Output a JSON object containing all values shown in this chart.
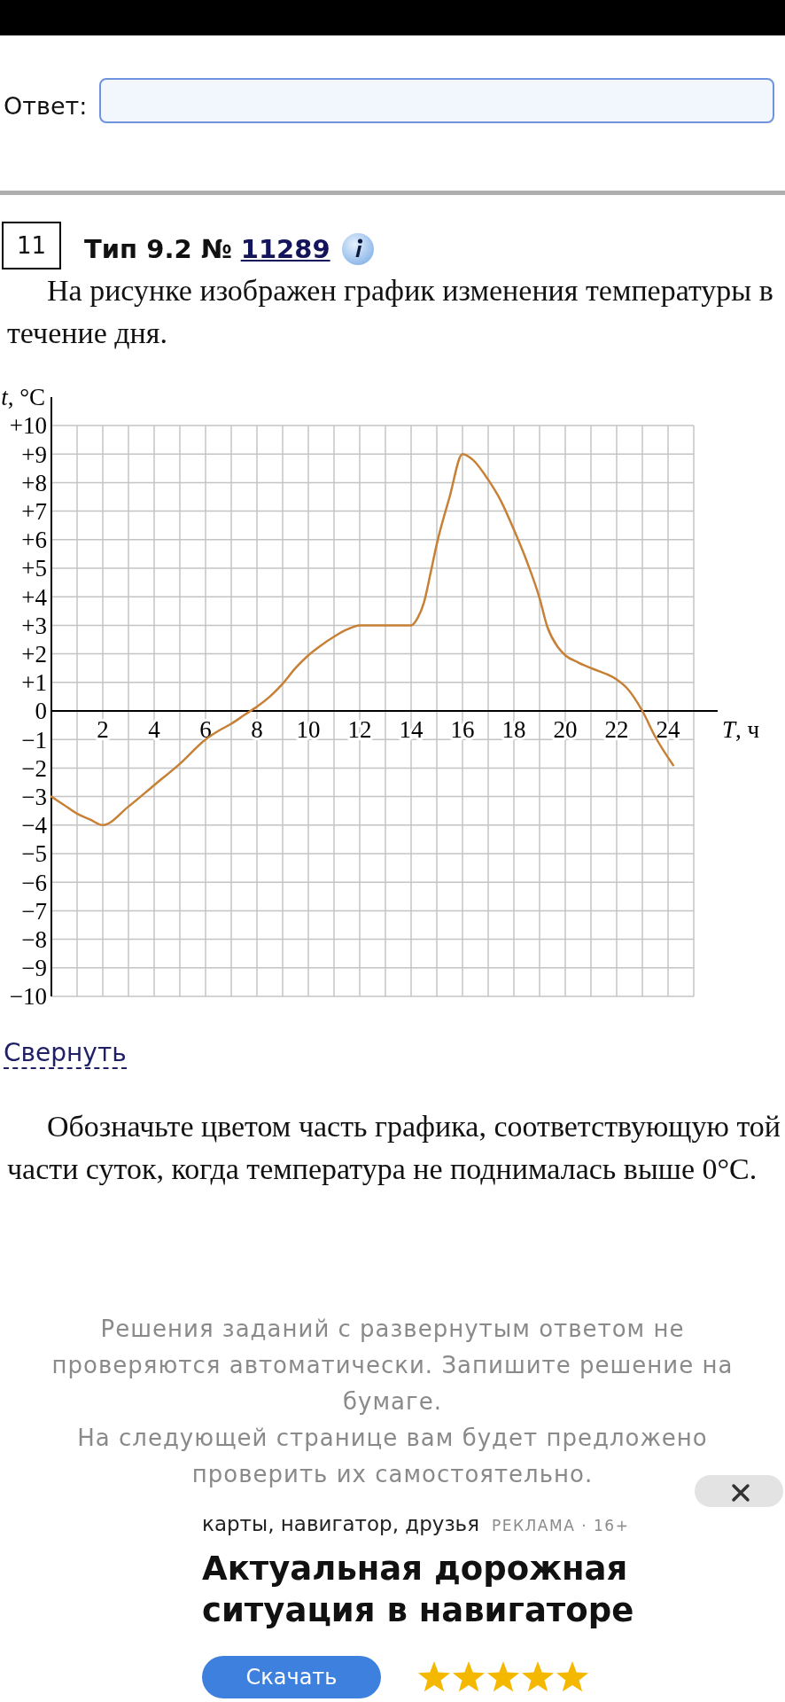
{
  "chart_data": {
    "type": "line",
    "title": "На рисунке изображен график изменения температуры в течение дня.",
    "xlabel": "T, ч",
    "ylabel": "t, °C",
    "xlim": [
      0,
      25
    ],
    "ylim": [
      -10,
      10
    ],
    "xticks": [
      {
        "value": 1,
        "label": null
      },
      2,
      {
        "value": 3,
        "label": null
      },
      4,
      {
        "value": 5,
        "label": null
      },
      6,
      {
        "value": 7,
        "label": null
      },
      8,
      {
        "value": 9,
        "label": null
      },
      10,
      {
        "value": 11,
        "label": null
      },
      12,
      {
        "value": 13,
        "label": null
      },
      14,
      {
        "value": 15,
        "label": null
      },
      16,
      {
        "value": 17,
        "label": null
      },
      18,
      {
        "value": 19,
        "label": null
      },
      20,
      {
        "value": 21,
        "label": null
      },
      22,
      {
        "value": 23,
        "label": null
      },
      24,
      {
        "value": 25,
        "label": null
      }
    ],
    "yticks": [
      {
        "value": -10,
        "label": "−10"
      },
      {
        "value": -9,
        "label": "−9"
      },
      {
        "value": -8,
        "label": "−8"
      },
      {
        "value": -7,
        "label": "−7"
      },
      {
        "value": -6,
        "label": "−6"
      },
      {
        "value": -5,
        "label": "−5"
      },
      {
        "value": -4,
        "label": "−4"
      },
      {
        "value": -3,
        "label": "−3"
      },
      {
        "value": -2,
        "label": "−2"
      },
      {
        "value": -1,
        "label": "−1"
      },
      0,
      {
        "value": 1,
        "label": "+1"
      },
      {
        "value": 2,
        "label": "+2"
      },
      {
        "value": 3,
        "label": "+3"
      },
      {
        "value": 4,
        "label": "+4"
      },
      {
        "value": 5,
        "label": "+5"
      },
      {
        "value": 6,
        "label": "+6"
      },
      {
        "value": 7,
        "label": "+7"
      },
      {
        "value": 8,
        "label": "+8"
      },
      {
        "value": 9,
        "label": "+9"
      },
      {
        "value": 10,
        "label": "+10"
      }
    ],
    "grid": true,
    "series": [
      {
        "color": "#c68136",
        "x": [
          0,
          0.5,
          1,
          1.5,
          2,
          3,
          4,
          5,
          6,
          6.5,
          7,
          7.5,
          7.75,
          8,
          8.5,
          9,
          9.5,
          10,
          10.5,
          11,
          11.5,
          12,
          13,
          14,
          14.25,
          14.5,
          14.75,
          15,
          15.5,
          16,
          16.4,
          17,
          17.5,
          18,
          18.5,
          19,
          19.3,
          19.7,
          20,
          20.5,
          21,
          22,
          22.4,
          23,
          23.5,
          24.2
        ],
        "values": [
          -3,
          -3.3,
          -3.6,
          -3.8,
          -4,
          -3.35,
          -2.6,
          -1.85,
          -1,
          -0.7,
          -0.45,
          -0.15,
          0,
          0.15,
          0.5,
          0.95,
          1.5,
          1.95,
          2.3,
          2.6,
          2.85,
          3,
          3,
          3,
          3.25,
          3.8,
          4.8,
          5.85,
          7.5,
          9,
          8.8,
          8.1,
          7.35,
          6.35,
          5.25,
          3.95,
          2.95,
          2.25,
          1.95,
          1.7,
          1.5,
          1.1,
          0.8,
          0,
          -0.9,
          -1.9
        ]
      }
    ],
    "annotations": [
      "Ответ:",
      "11",
      "Тип 9.2 № 11289",
      "Свернуть",
      "Обозначьте цветом часть графика, соответствующую той части суток, когда температура не поднималась выше 0°C.",
      "Решения заданий с развернутым ответом не проверяются автоматически. Запишите решение на бумаге.",
      "На следующей странице вам будет предложено проверить их самостоятельно.",
      "карты, навигатор, друзья",
      "РЕКЛАМА · 16+",
      "Актуальная дорожная ситуация в навигаторе",
      "Скачать"
    ]
  }
}
